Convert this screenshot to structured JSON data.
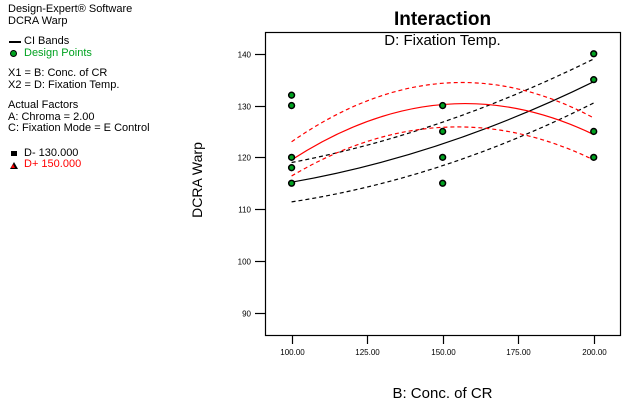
{
  "info_panel": {
    "software_name": "Design-Expert® Software",
    "response_name": "DCRA Warp",
    "ci_bands_label": "CI Bands",
    "design_points_label": "Design Points",
    "x1_line": "X1 = B: Conc. of CR",
    "x2_line": "X2 = D: Fixation Temp.",
    "actual_factors_title": "Actual Factors",
    "factor_a": "A: Chroma = 2.00",
    "factor_c": "C: Fixation Mode = E Control",
    "d_minus_label": "D- 130.000",
    "d_plus_label": "D+ 150.000"
  },
  "colors": {
    "design_point_green": "#00a220",
    "legend_green_text": "#00a220",
    "d_plus_red": "#ff0000",
    "line_black": "#000000"
  },
  "chart_data": {
    "type": "line",
    "title": "Interaction",
    "subtitle": "D: Fixation Temp.",
    "xlabel": "B: Conc. of CR",
    "ylabel": "DCRA Warp",
    "xlim": [
      91.2,
      208.7
    ],
    "ylim": [
      85.7,
      144.2
    ],
    "x_ticks": [
      100,
      125,
      150,
      175,
      200
    ],
    "x_tick_labels": [
      "100.00",
      "125.00",
      "150.00",
      "175.00",
      "200.00"
    ],
    "y_ticks": [
      90,
      100,
      110,
      120,
      130,
      140
    ],
    "y_tick_labels": [
      "90",
      "100",
      "110",
      "120",
      "130",
      "140"
    ],
    "grid": false,
    "legend_position": "outside-left",
    "series": [
      {
        "name": "D- 130.000",
        "color": "#000000",
        "style": "solid",
        "x": [
          100,
          150,
          200
        ],
        "values": [
          115.2,
          122.6,
          134.6
        ]
      },
      {
        "name": "D- 130.000 CI upper",
        "color": "#000000",
        "style": "dashed",
        "x": [
          100,
          150,
          200
        ],
        "values": [
          119.0,
          126.8,
          139.0
        ]
      },
      {
        "name": "D- 130.000 CI lower",
        "color": "#000000",
        "style": "dashed",
        "x": [
          100,
          150,
          200
        ],
        "values": [
          111.4,
          118.4,
          130.5
        ]
      },
      {
        "name": "D+ 150.000",
        "color": "#ff0000",
        "style": "solid",
        "x": [
          100,
          150,
          200
        ],
        "values": [
          119.5,
          130.2,
          124.4
        ]
      },
      {
        "name": "D+ 150.000 CI upper",
        "color": "#ff0000",
        "style": "dashed",
        "x": [
          100,
          150,
          200
        ],
        "values": [
          123.0,
          134.3,
          127.6
        ]
      },
      {
        "name": "D+ 150.000 CI lower",
        "color": "#ff0000",
        "style": "dashed",
        "x": [
          100,
          150,
          200
        ],
        "values": [
          116.4,
          125.8,
          119.5
        ]
      }
    ],
    "design_points": [
      {
        "x": 100,
        "y": 132
      },
      {
        "x": 100,
        "y": 130
      },
      {
        "x": 100,
        "y": 120
      },
      {
        "x": 100,
        "y": 118
      },
      {
        "x": 100,
        "y": 115
      },
      {
        "x": 150,
        "y": 130
      },
      {
        "x": 150,
        "y": 125
      },
      {
        "x": 150,
        "y": 120
      },
      {
        "x": 150,
        "y": 115
      },
      {
        "x": 200,
        "y": 140
      },
      {
        "x": 200,
        "y": 135
      },
      {
        "x": 200,
        "y": 125
      },
      {
        "x": 200,
        "y": 120
      }
    ]
  }
}
